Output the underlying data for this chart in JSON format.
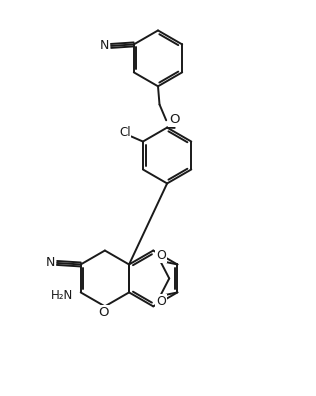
{
  "figsize": [
    3.16,
    3.96
  ],
  "dpi": 100,
  "bg_color": "#ffffff",
  "line_color": "#1a1a1a",
  "line_width": 1.4,
  "font_size": 8.5,
  "xlim": [
    0,
    10
  ],
  "ylim": [
    0,
    13
  ]
}
